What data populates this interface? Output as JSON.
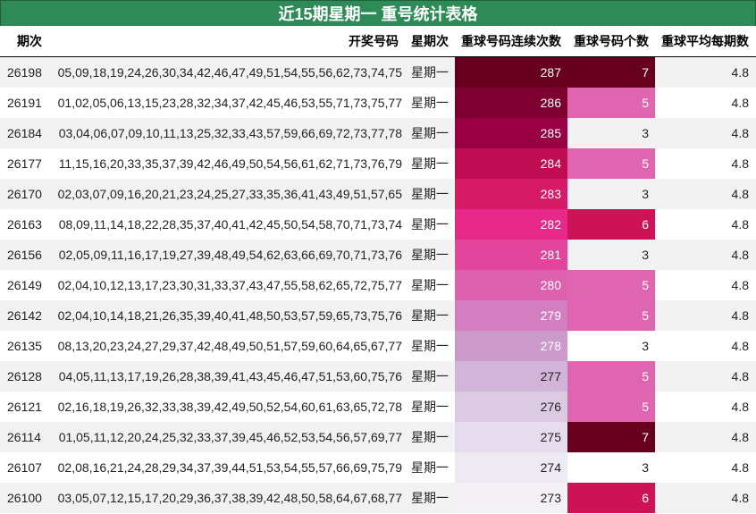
{
  "title": "近15期星期一 重号统计表格",
  "columns": {
    "id": "期次",
    "numbers": "开奖号码",
    "weekday": "星期次",
    "consecutive": "重球号码连续次数",
    "count": "重球号码个数",
    "avg": "重球平均每期数"
  },
  "rows": [
    {
      "id": "26198",
      "numbers": "05,09,18,19,24,26,30,34,42,46,47,49,51,54,55,56,62,73,74,75",
      "weekday": "星期一",
      "consecutive": "287",
      "count": "7",
      "avg": "4.8",
      "heat_color": "#67001f",
      "heat_text": "#ffffff",
      "count_color": "#67001f",
      "count_text": "#ffffff"
    },
    {
      "id": "26191",
      "numbers": "01,02,05,06,13,15,23,28,32,34,37,42,45,46,53,55,71,73,75,77",
      "weekday": "星期一",
      "consecutive": "286",
      "count": "5",
      "avg": "4.8",
      "heat_color": "#7d0030",
      "heat_text": "#ffffff",
      "count_color": "#df65b0",
      "count_text": "#ffffff"
    },
    {
      "id": "26184",
      "numbers": "03,04,06,07,09,10,11,13,25,32,33,43,57,59,66,69,72,73,77,78",
      "weekday": "星期一",
      "consecutive": "285",
      "count": "3",
      "avg": "4.8",
      "heat_color": "#980043",
      "heat_text": "#ffffff",
      "count_color": "",
      "count_text": "#222222"
    },
    {
      "id": "26177",
      "numbers": "11,15,16,20,33,35,37,39,42,46,49,50,54,56,61,62,71,73,76,79",
      "weekday": "星期一",
      "consecutive": "284",
      "count": "5",
      "avg": "4.8",
      "heat_color": "#be0d52",
      "heat_text": "#ffffff",
      "count_color": "#df65b0",
      "count_text": "#ffffff"
    },
    {
      "id": "26170",
      "numbers": "02,03,07,09,16,20,21,23,24,25,27,33,35,36,41,43,49,51,57,65",
      "weekday": "星期一",
      "consecutive": "283",
      "count": "3",
      "avg": "4.8",
      "heat_color": "#d61a66",
      "heat_text": "#ffffff",
      "count_color": "",
      "count_text": "#222222"
    },
    {
      "id": "26163",
      "numbers": "08,09,11,14,18,22,28,35,37,40,41,42,45,50,54,58,70,71,73,74",
      "weekday": "星期一",
      "consecutive": "282",
      "count": "6",
      "avg": "4.8",
      "heat_color": "#e7298a",
      "heat_text": "#ffffff",
      "count_color": "#ce1256",
      "count_text": "#ffffff"
    },
    {
      "id": "26156",
      "numbers": "02,05,09,11,16,17,19,27,39,48,49,54,62,63,66,69,70,71,73,76",
      "weekday": "星期一",
      "consecutive": "281",
      "count": "3",
      "avg": "4.8",
      "heat_color": "#e3449c",
      "heat_text": "#ffffff",
      "count_color": "",
      "count_text": "#222222"
    },
    {
      "id": "26149",
      "numbers": "02,04,10,12,13,17,23,30,31,33,37,43,47,55,58,62,65,72,75,77",
      "weekday": "星期一",
      "consecutive": "280",
      "count": "5",
      "avg": "4.8",
      "heat_color": "#dd61af",
      "heat_text": "#ffffff",
      "count_color": "#df65b0",
      "count_text": "#ffffff"
    },
    {
      "id": "26142",
      "numbers": "02,04,10,14,18,21,26,35,39,40,41,48,50,53,57,59,65,73,75,76",
      "weekday": "星期一",
      "consecutive": "279",
      "count": "5",
      "avg": "4.8",
      "heat_color": "#d27ec1",
      "heat_text": "#ffffff",
      "count_color": "#df65b0",
      "count_text": "#ffffff"
    },
    {
      "id": "26135",
      "numbers": "08,13,20,23,24,27,29,37,42,48,49,50,51,57,59,60,64,65,67,77",
      "weekday": "星期一",
      "consecutive": "278",
      "count": "3",
      "avg": "4.8",
      "heat_color": "#cb99ca",
      "heat_text": "#ffffff",
      "count_color": "",
      "count_text": "#222222"
    },
    {
      "id": "26128",
      "numbers": "04,05,11,13,17,19,26,28,38,39,41,43,45,46,47,51,53,60,75,76",
      "weekday": "星期一",
      "consecutive": "277",
      "count": "5",
      "avg": "4.8",
      "heat_color": "#d3b4d9",
      "heat_text": "#222222",
      "count_color": "#df65b0",
      "count_text": "#ffffff"
    },
    {
      "id": "26121",
      "numbers": "02,16,18,19,26,32,33,38,39,42,49,50,52,54,60,61,63,65,72,78",
      "weekday": "星期一",
      "consecutive": "276",
      "count": "5",
      "avg": "4.8",
      "heat_color": "#dccae3",
      "heat_text": "#222222",
      "count_color": "#df65b0",
      "count_text": "#ffffff"
    },
    {
      "id": "26114",
      "numbers": "01,05,11,12,20,24,25,32,33,37,39,45,46,52,53,54,56,57,69,77",
      "weekday": "星期一",
      "consecutive": "275",
      "count": "7",
      "avg": "4.8",
      "heat_color": "#e6dced",
      "heat_text": "#222222",
      "count_color": "#67001f",
      "count_text": "#ffffff"
    },
    {
      "id": "26107",
      "numbers": "02,08,16,21,24,28,29,34,37,39,44,51,53,54,55,57,66,69,75,79",
      "weekday": "星期一",
      "consecutive": "274",
      "count": "3",
      "avg": "4.8",
      "heat_color": "#eeeaf3",
      "heat_text": "#222222",
      "count_color": "",
      "count_text": "#222222"
    },
    {
      "id": "26100",
      "numbers": "03,05,07,12,15,17,20,29,36,37,38,39,42,48,50,58,64,67,68,77",
      "weekday": "星期一",
      "consecutive": "273",
      "count": "6",
      "avg": "4.8",
      "heat_color": "#f4f1f7",
      "heat_text": "#222222",
      "count_color": "#ce1256",
      "count_text": "#ffffff"
    }
  ]
}
